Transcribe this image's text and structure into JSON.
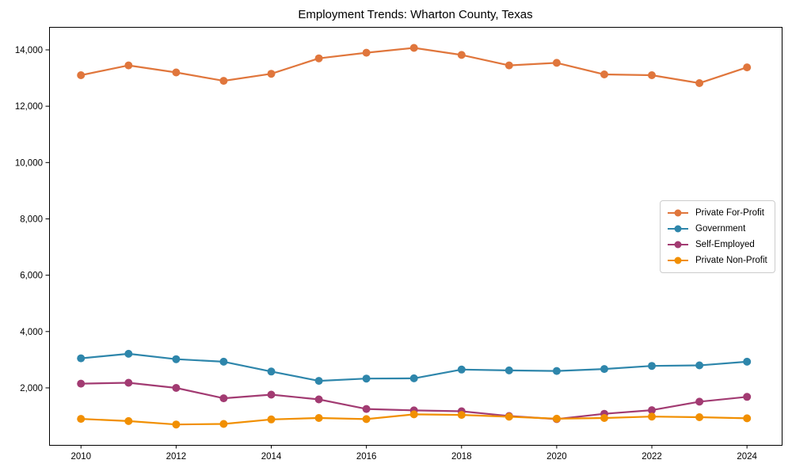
{
  "title": "Employment Trends: Wharton County, Texas",
  "chart_data": {
    "type": "line",
    "title": "Employment Trends: Wharton County, Texas",
    "xlabel": "",
    "ylabel": "",
    "x": [
      2010,
      2011,
      2012,
      2013,
      2014,
      2015,
      2016,
      2017,
      2018,
      2019,
      2020,
      2021,
      2022,
      2023,
      2024
    ],
    "series": [
      {
        "name": "Private For-Profit",
        "color": "#E0763C",
        "values": [
          13100,
          13450,
          13200,
          12900,
          13150,
          13700,
          13900,
          14070,
          13820,
          13450,
          13540,
          13130,
          13100,
          12820,
          13380
        ]
      },
      {
        "name": "Government",
        "color": "#2E86AB",
        "values": [
          3050,
          3210,
          3020,
          2930,
          2580,
          2250,
          2330,
          2340,
          2650,
          2620,
          2600,
          2670,
          2780,
          2800,
          2930
        ]
      },
      {
        "name": "Self-Employed",
        "color": "#A23B72",
        "values": [
          2150,
          2180,
          2000,
          1630,
          1760,
          1590,
          1250,
          1200,
          1170,
          1000,
          890,
          1080,
          1210,
          1510,
          1680
        ]
      },
      {
        "name": "Private Non-Profit",
        "color": "#F18F01",
        "values": [
          900,
          820,
          700,
          720,
          880,
          930,
          890,
          1060,
          1040,
          975,
          905,
          930,
          980,
          960,
          920
        ]
      }
    ],
    "xticks": {
      "values": [
        2010,
        2012,
        2014,
        2016,
        2018,
        2020,
        2022,
        2024
      ],
      "labels": [
        "2010",
        "2012",
        "2014",
        "2016",
        "2018",
        "2020",
        "2022",
        "2024"
      ]
    },
    "yticks": {
      "values": [
        2000,
        4000,
        6000,
        8000,
        10000,
        12000,
        14000
      ],
      "labels": [
        "2,000",
        "4,000",
        "6,000",
        "8,000",
        "10,000",
        "12,000",
        "14,000"
      ]
    },
    "xlim": [
      2009.33,
      2024.73
    ],
    "ylim": [
      -25,
      14815
    ],
    "grid": false,
    "legend_position": "right",
    "legend": [
      "Private For-Profit",
      "Government",
      "Self-Employed",
      "Private Non-Profit"
    ]
  }
}
